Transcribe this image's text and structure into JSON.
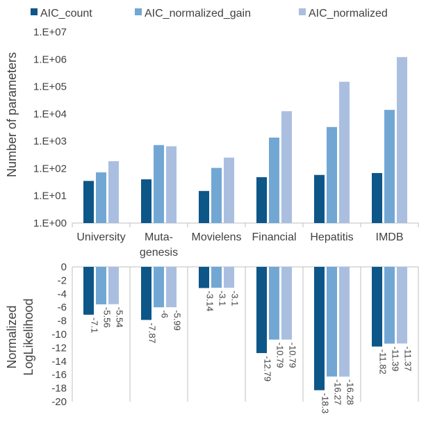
{
  "colors": {
    "s0": "#0d5688",
    "s1": "#72a7d4",
    "s2": "#aabfe0",
    "axis": "#bfbfbf",
    "text": "#404040"
  },
  "chart_data": [
    {
      "type": "bar",
      "scale": "log",
      "categories": [
        "University",
        "Muta- genesis",
        "Movielens",
        "Financial",
        "Hepatitis",
        "IMDB"
      ],
      "category_lines": [
        [
          "University"
        ],
        [
          "Muta-",
          "genesis"
        ],
        [
          "Movielens"
        ],
        [
          "Financial"
        ],
        [
          "Hepatitis"
        ],
        [
          "IMDB"
        ]
      ],
      "ylabel": "Number of parameters",
      "ylim": [
        1,
        10000000
      ],
      "ytick_labels": [
        "1.E+00",
        "1.E+01",
        "1.E+02",
        "1.E+03",
        "1.E+04",
        "1.E+05",
        "1.E+06",
        "1.E+07"
      ],
      "legend": "top",
      "series": [
        {
          "name": "AIC_count",
          "values": [
            35,
            40,
            15,
            48,
            58,
            68
          ]
        },
        {
          "name": "AIC_normalized_gain",
          "values": [
            72,
            720,
            105,
            1350,
            3300,
            14000
          ]
        },
        {
          "name": "AIC_normalized",
          "values": [
            185,
            650,
            250,
            12500,
            150000,
            1200000
          ]
        }
      ]
    },
    {
      "type": "bar",
      "ylabel_lines": [
        "Normalized",
        "LogLikelihood"
      ],
      "ylim": [
        -20,
        0
      ],
      "yticks": [
        0,
        -2,
        -4,
        -6,
        -8,
        -10,
        -12,
        -14,
        -16,
        -18,
        -20
      ],
      "series": [
        {
          "name": "AIC_count",
          "values": [
            -7.1,
            -7.87,
            -3.14,
            -12.79,
            -18.3,
            -11.82
          ],
          "labels": [
            "-7.1",
            "-7.87",
            "-3.14",
            "-12.79",
            "-18.3",
            "-11.82"
          ]
        },
        {
          "name": "AIC_normalized_gain",
          "values": [
            -5.56,
            -6,
            -3.1,
            -10.79,
            -16.27,
            -11.39
          ],
          "labels": [
            "-5.56",
            "-6",
            "-3.1",
            "-10.79",
            "-16.27",
            "-11.39"
          ]
        },
        {
          "name": "AIC_normalized",
          "values": [
            -5.54,
            -5.99,
            -3.1,
            -10.79,
            -16.28,
            -11.37
          ],
          "labels": [
            "-5.54",
            "-5.99",
            "-3.1",
            "-10.79",
            "-16.28",
            "-11.37"
          ]
        }
      ]
    }
  ]
}
